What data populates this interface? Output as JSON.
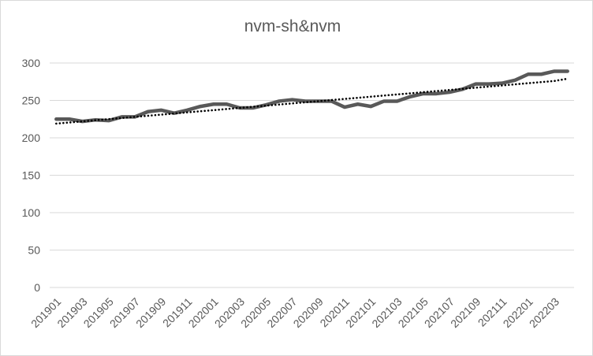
{
  "chart_data": {
    "type": "line",
    "title": "nvm-sh&nvm",
    "xlabel": "",
    "ylabel": "",
    "ylim": [
      0,
      300
    ],
    "yticks": [
      0,
      50,
      100,
      150,
      200,
      250,
      300
    ],
    "grid": true,
    "legend": "none",
    "x": [
      "201901",
      "201902",
      "201903",
      "201904",
      "201905",
      "201906",
      "201907",
      "201908",
      "201909",
      "201910",
      "201911",
      "201912",
      "202001",
      "202002",
      "202003",
      "202004",
      "202005",
      "202006",
      "202007",
      "202008",
      "202009",
      "202010",
      "202011",
      "202012",
      "202101",
      "202102",
      "202103",
      "202104",
      "202105",
      "202106",
      "202107",
      "202108",
      "202109",
      "202110",
      "202111",
      "202112",
      "202201",
      "202202",
      "202203",
      "202204"
    ],
    "xtick_labels": [
      "201901",
      "201903",
      "201905",
      "201907",
      "201909",
      "201911",
      "202001",
      "202003",
      "202005",
      "202007",
      "202009",
      "202011",
      "202101",
      "202103",
      "202105",
      "202107",
      "202109",
      "202111",
      "202201",
      "202203"
    ],
    "series": [
      {
        "values": [
          225,
          225,
          222,
          224,
          223,
          228,
          228,
          235,
          237,
          233,
          237,
          242,
          245,
          245,
          240,
          240,
          244,
          249,
          251,
          249,
          249,
          249,
          241,
          245,
          242,
          249,
          249,
          255,
          259,
          259,
          261,
          265,
          272,
          272,
          273,
          277,
          285,
          285,
          289,
          289
        ],
        "color": "#595959",
        "style": "solid"
      },
      {
        "trendline": "linear",
        "values": [
          219,
          220.5,
          222,
          223.5,
          225,
          226.5,
          228,
          229.5,
          231,
          232.5,
          234,
          235.5,
          237,
          238.5,
          240,
          241.5,
          243,
          244.5,
          246,
          247.5,
          249,
          250.5,
          252,
          253.5,
          255,
          256.5,
          258,
          259.5,
          261,
          262.5,
          264,
          265.5,
          267,
          268.5,
          270,
          271.5,
          273,
          274.5,
          276,
          279
        ],
        "color": "#000000",
        "style": "dotted"
      }
    ]
  }
}
